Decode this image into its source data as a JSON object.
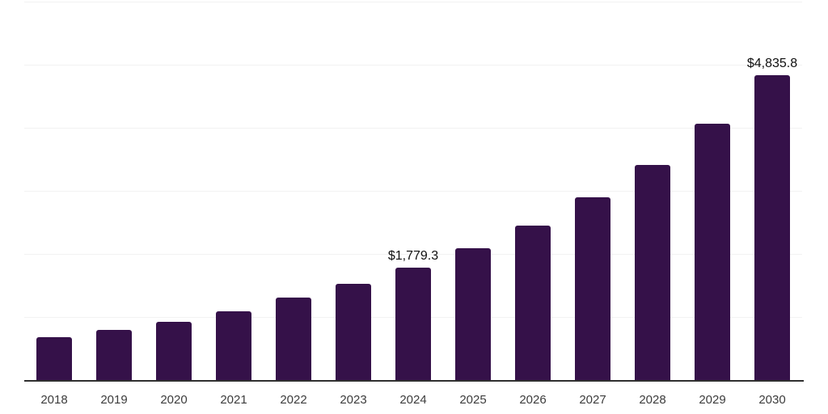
{
  "chart_data": {
    "type": "bar",
    "title": "",
    "categories": [
      "2018",
      "2019",
      "2020",
      "2021",
      "2022",
      "2023",
      "2024",
      "2025",
      "2026",
      "2027",
      "2028",
      "2029",
      "2030"
    ],
    "values": [
      675,
      790,
      920,
      1090,
      1305,
      1520,
      1779.3,
      2090,
      2455,
      2895,
      3415,
      4060,
      4835.8
    ],
    "data_labels": [
      "",
      "",
      "",
      "",
      "",
      "",
      "$1,779.3",
      "",
      "",
      "",
      "",
      "",
      "$4,835.8"
    ],
    "xlabel": "",
    "ylabel": "",
    "ylim": [
      0,
      6000
    ],
    "gridline_step": 1000,
    "grid": "horizontal-only",
    "legend": "none",
    "y_axis_labels_visible": false,
    "colors": {
      "bar": "#351149",
      "gridline": "#f2f2f2",
      "axis_line": "#2f2f2f",
      "tick_label": "#3c3c3c",
      "data_label": "#101010",
      "background": "#ffffff"
    }
  }
}
